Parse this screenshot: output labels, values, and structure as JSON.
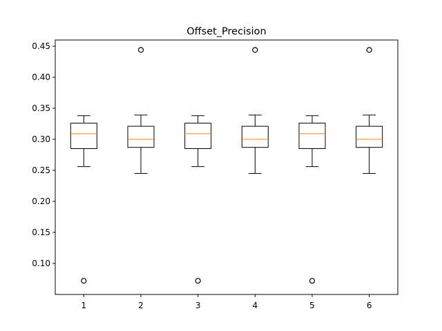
{
  "chart_data": {
    "type": "boxplot",
    "title": "Offset_Precision",
    "xlabel": "",
    "ylabel": "",
    "categories": [
      "1",
      "2",
      "3",
      "4",
      "5",
      "6"
    ],
    "ylim": [
      0.05,
      0.46
    ],
    "y_ticks": [
      "0.10",
      "0.15",
      "0.20",
      "0.25",
      "0.30",
      "0.35",
      "0.40",
      "0.45"
    ],
    "grid": false,
    "colors": {
      "box": "#000000",
      "median": "#ff7f0e",
      "outlier": "#000000"
    },
    "boxes": [
      {
        "whisker_low": 0.256,
        "q1": 0.285,
        "median": 0.309,
        "q3": 0.326,
        "whisker_high": 0.338,
        "outliers": [
          0.072
        ]
      },
      {
        "whisker_low": 0.245,
        "q1": 0.287,
        "median": 0.3,
        "q3": 0.321,
        "whisker_high": 0.339,
        "outliers": [
          0.444
        ]
      },
      {
        "whisker_low": 0.256,
        "q1": 0.285,
        "median": 0.309,
        "q3": 0.326,
        "whisker_high": 0.338,
        "outliers": [
          0.072
        ]
      },
      {
        "whisker_low": 0.245,
        "q1": 0.287,
        "median": 0.3,
        "q3": 0.321,
        "whisker_high": 0.339,
        "outliers": [
          0.444
        ]
      },
      {
        "whisker_low": 0.256,
        "q1": 0.285,
        "median": 0.309,
        "q3": 0.326,
        "whisker_high": 0.338,
        "outliers": [
          0.072
        ]
      },
      {
        "whisker_low": 0.245,
        "q1": 0.287,
        "median": 0.3,
        "q3": 0.321,
        "whisker_high": 0.339,
        "outliers": [
          0.444
        ]
      }
    ]
  }
}
